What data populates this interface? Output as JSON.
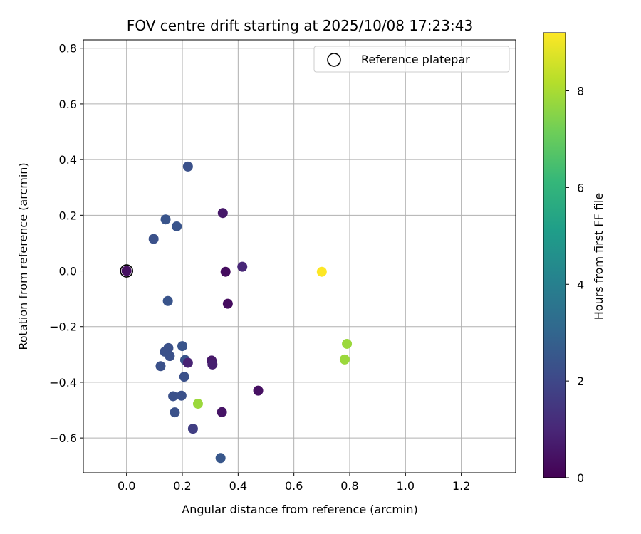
{
  "chart_data": {
    "type": "scatter",
    "title": "FOV centre drift starting at 2025/10/08 17:23:43",
    "xlabel": "Angular distance from reference (arcmin)",
    "ylabel": "Rotation from reference (arcmin)",
    "xlim": [
      -0.155,
      1.395
    ],
    "ylim": [
      -0.725,
      0.83
    ],
    "xticks": [
      0.0,
      0.2,
      0.4,
      0.6,
      0.8,
      1.0,
      1.2
    ],
    "xtick_labels": [
      "0.0",
      "0.2",
      "0.4",
      "0.6",
      "0.8",
      "1.0",
      "1.2"
    ],
    "yticks": [
      -0.6,
      -0.4,
      -0.2,
      0.0,
      0.2,
      0.4,
      0.6,
      0.8
    ],
    "ytick_labels": [
      "−0.6",
      "−0.4",
      "−0.2",
      "0.0",
      "0.2",
      "0.4",
      "0.6",
      "0.8"
    ],
    "grid": true,
    "legend": {
      "label": "Reference platepar",
      "location": "top-right"
    },
    "reference_point": {
      "x": 0.0,
      "y": 0.0
    },
    "colormap": "viridis",
    "colorbar": {
      "label": "Hours from first FF file",
      "range": [
        0,
        9.2
      ],
      "ticks": [
        0,
        2,
        4,
        6,
        8
      ],
      "tick_labels": [
        "0",
        "2",
        "4",
        "6",
        "8"
      ]
    },
    "points": [
      {
        "x": 0.22,
        "y": 0.375,
        "hours": 2.3
      },
      {
        "x": 0.345,
        "y": 0.208,
        "hours": 0.6
      },
      {
        "x": 0.14,
        "y": 0.185,
        "hours": 2.4
      },
      {
        "x": 0.18,
        "y": 0.16,
        "hours": 2.4
      },
      {
        "x": 0.097,
        "y": 0.115,
        "hours": 2.3
      },
      {
        "x": 0.0,
        "y": 0.0,
        "hours": 0.4
      },
      {
        "x": 0.355,
        "y": -0.003,
        "hours": 0.3
      },
      {
        "x": 0.415,
        "y": 0.015,
        "hours": 1.0
      },
      {
        "x": 0.7,
        "y": -0.003,
        "hours": 9.2
      },
      {
        "x": 0.148,
        "y": -0.108,
        "hours": 2.4
      },
      {
        "x": 0.363,
        "y": -0.118,
        "hours": 0.3
      },
      {
        "x": 0.79,
        "y": -0.262,
        "hours": 7.8
      },
      {
        "x": 0.782,
        "y": -0.318,
        "hours": 7.8
      },
      {
        "x": 0.2,
        "y": -0.27,
        "hours": 2.4
      },
      {
        "x": 0.15,
        "y": -0.277,
        "hours": 2.3
      },
      {
        "x": 0.137,
        "y": -0.29,
        "hours": 2.3
      },
      {
        "x": 0.155,
        "y": -0.306,
        "hours": 2.3
      },
      {
        "x": 0.21,
        "y": -0.32,
        "hours": 2.4
      },
      {
        "x": 0.22,
        "y": -0.33,
        "hours": 0.9
      },
      {
        "x": 0.305,
        "y": -0.322,
        "hours": 0.6
      },
      {
        "x": 0.308,
        "y": -0.336,
        "hours": 0.8
      },
      {
        "x": 0.122,
        "y": -0.342,
        "hours": 2.3
      },
      {
        "x": 0.207,
        "y": -0.38,
        "hours": 2.3
      },
      {
        "x": 0.472,
        "y": -0.43,
        "hours": 0.4
      },
      {
        "x": 0.167,
        "y": -0.45,
        "hours": 2.3
      },
      {
        "x": 0.197,
        "y": -0.448,
        "hours": 2.3
      },
      {
        "x": 0.256,
        "y": -0.477,
        "hours": 7.8
      },
      {
        "x": 0.342,
        "y": -0.507,
        "hours": 0.5
      },
      {
        "x": 0.173,
        "y": -0.508,
        "hours": 2.3
      },
      {
        "x": 0.238,
        "y": -0.567,
        "hours": 1.7
      },
      {
        "x": 0.337,
        "y": -0.672,
        "hours": 2.5
      }
    ]
  }
}
